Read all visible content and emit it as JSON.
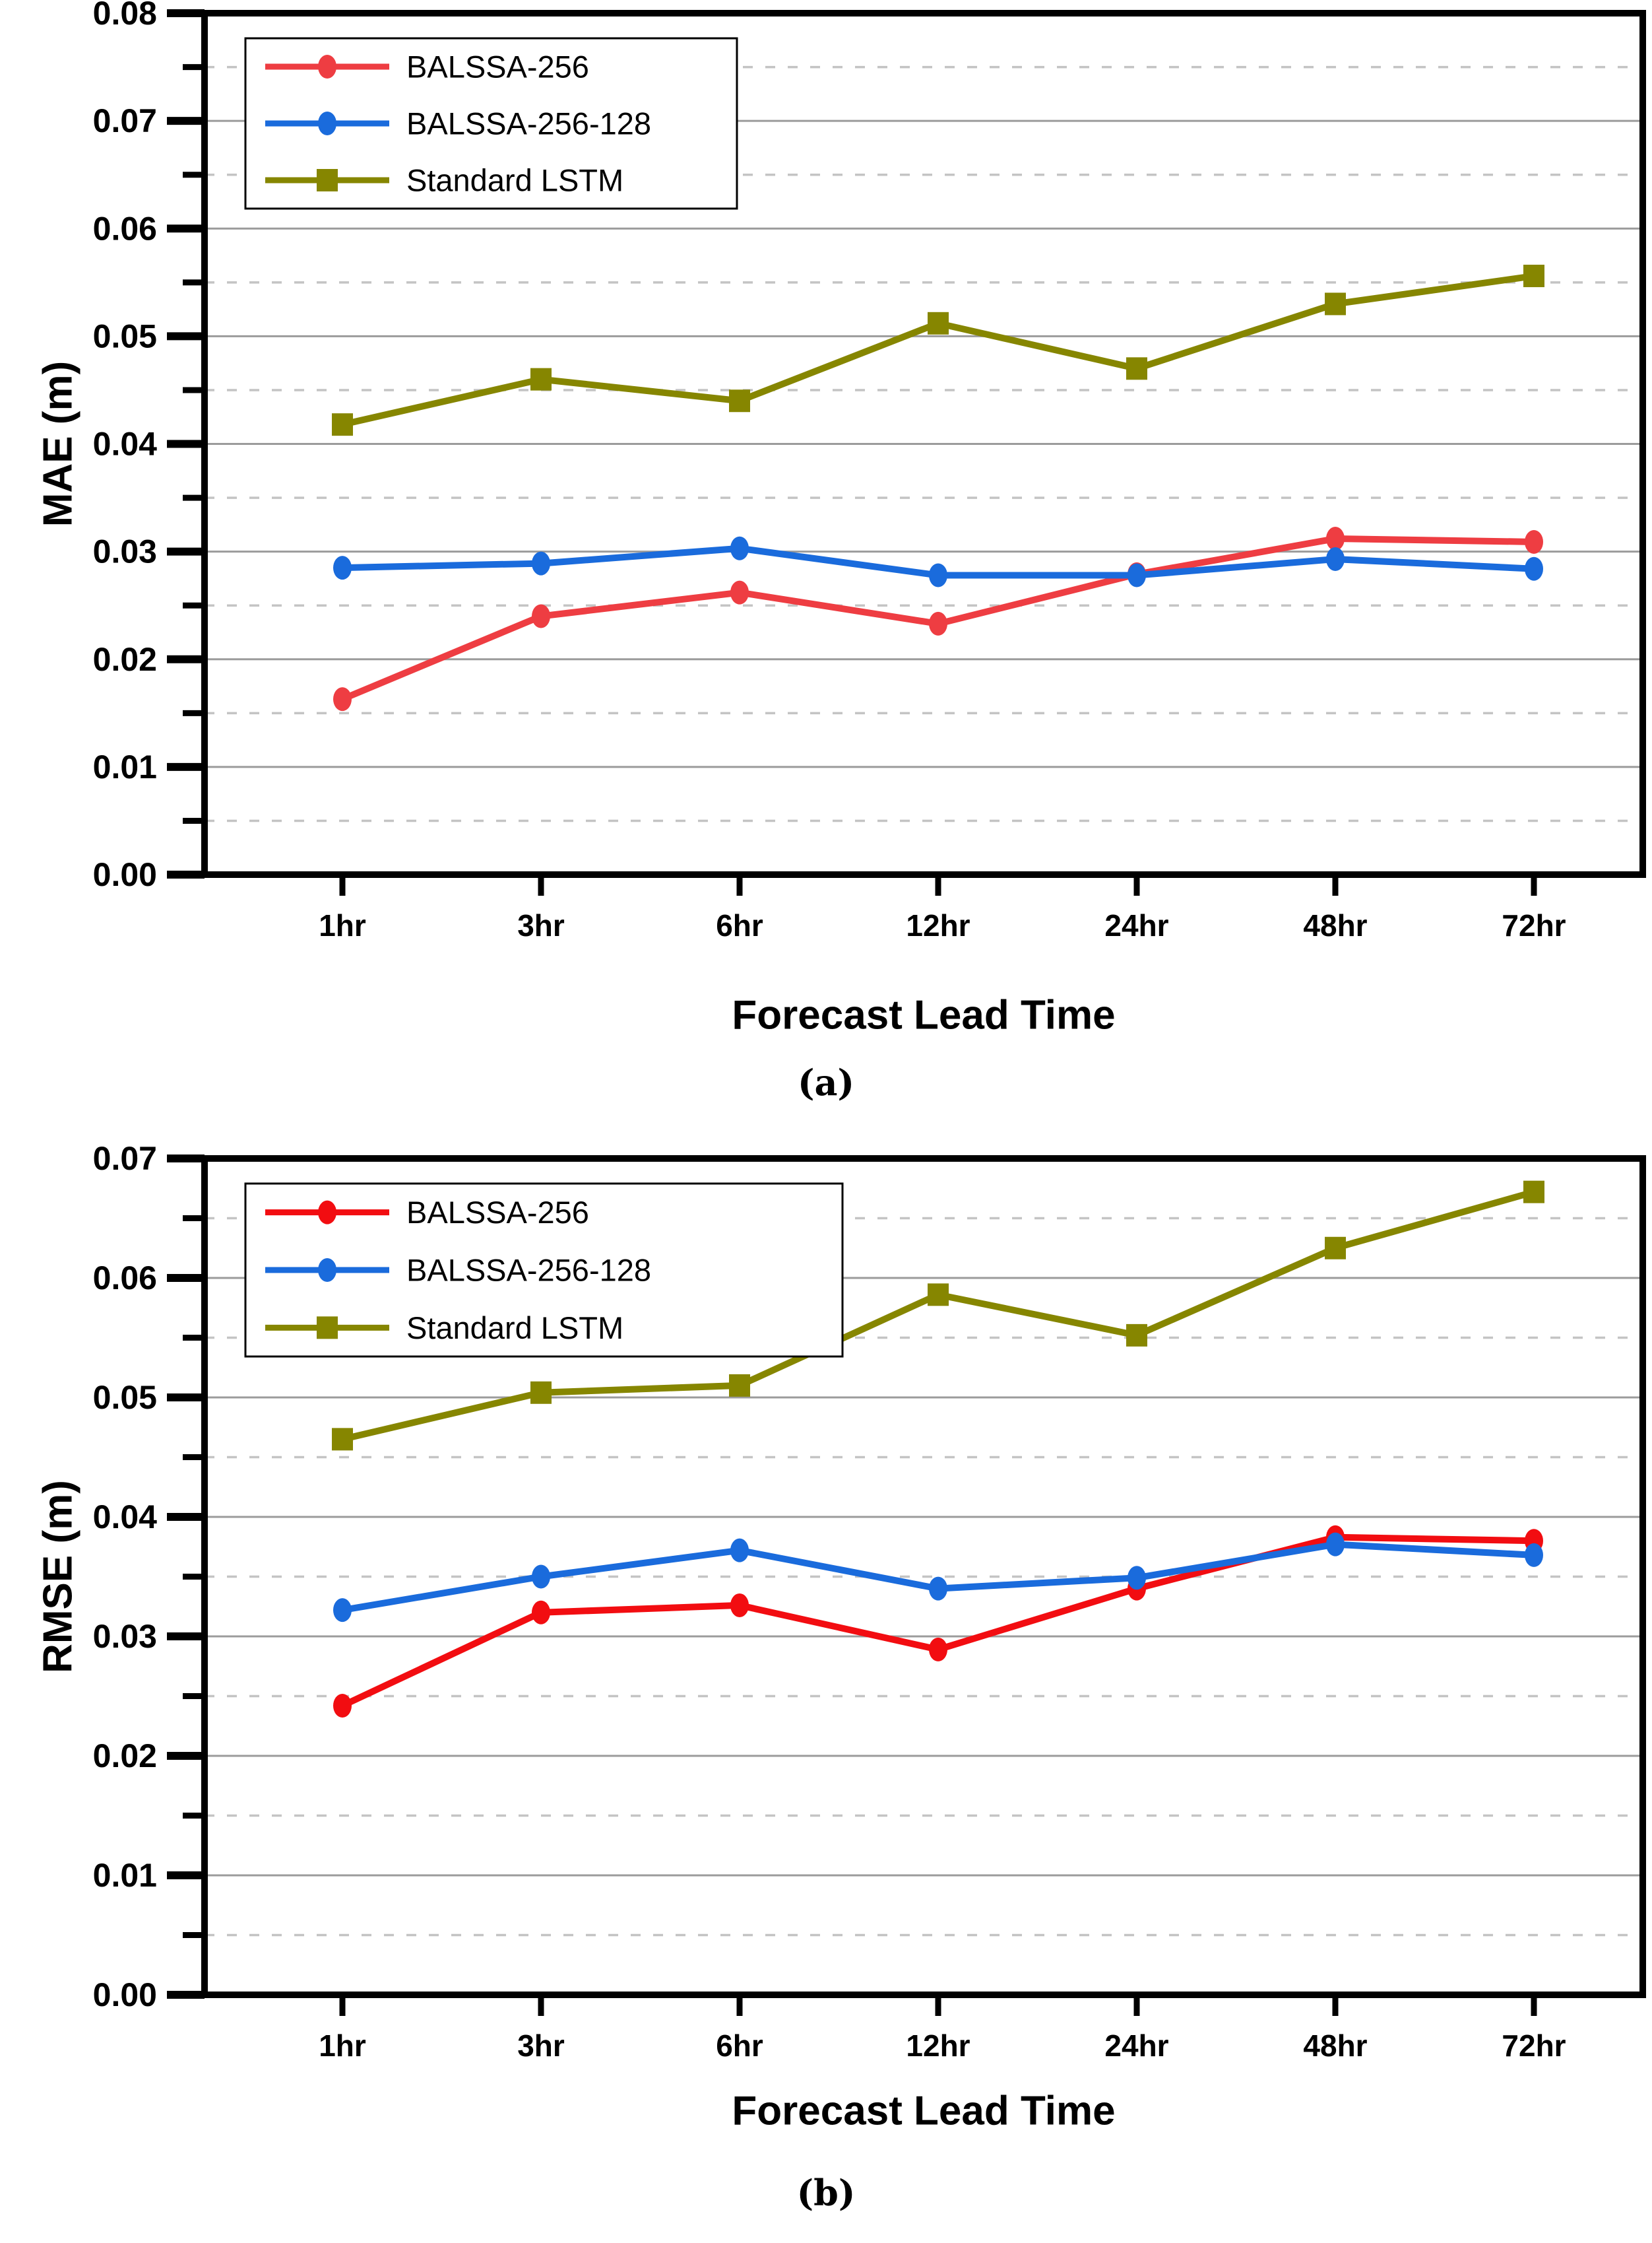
{
  "page": {
    "background": "#ffffff"
  },
  "panels": {
    "a": {
      "label": "(a)"
    },
    "b": {
      "label": "(b)"
    }
  },
  "colors": {
    "axis": "#000000",
    "text": "#000000",
    "grid_major": "#9b9b9b",
    "grid_minor": "#c4c4c4",
    "legend_border": "#000000",
    "background": "#ffffff",
    "balssa_256_mae": "#ee3d42",
    "balssa_256_rmse": "#f20d11",
    "balssa_256_128": "#1a6bdc",
    "standard_lstm": "#868600"
  },
  "chart_data": [
    {
      "type": "line",
      "panel": "a",
      "title": "",
      "xlabel": "Forecast Lead Time",
      "ylabel": "MAE (m)",
      "categories": [
        "1hr",
        "3hr",
        "6hr",
        "12hr",
        "24hr",
        "48hr",
        "72hr"
      ],
      "ylim": [
        0,
        0.08
      ],
      "ytick_step": 0.01,
      "yticks": [
        "0.00",
        "0.01",
        "0.02",
        "0.03",
        "0.04",
        "0.05",
        "0.06",
        "0.07",
        "0.08"
      ],
      "grid": {
        "major": "solid",
        "minor": "dashed",
        "minor_step": 0.005
      },
      "legend_position": "upper-left",
      "series": [
        {
          "name": "BALSSA-256",
          "color": "#ee3d42",
          "marker": "circle",
          "values": [
            0.0163,
            0.024,
            0.0262,
            0.0233,
            0.0279,
            0.0312,
            0.0309
          ]
        },
        {
          "name": "BALSSA-256-128",
          "color": "#1a6bdc",
          "marker": "circle",
          "values": [
            0.0285,
            0.0289,
            0.0303,
            0.0278,
            0.0278,
            0.0293,
            0.0284
          ]
        },
        {
          "name": "Standard LSTM",
          "color": "#868600",
          "marker": "square",
          "values": [
            0.0418,
            0.046,
            0.044,
            0.0512,
            0.047,
            0.053,
            0.0556
          ]
        }
      ]
    },
    {
      "type": "line",
      "panel": "b",
      "title": "",
      "xlabel": "Forecast Lead Time",
      "ylabel": "RMSE (m)",
      "categories": [
        "1hr",
        "3hr",
        "6hr",
        "12hr",
        "24hr",
        "48hr",
        "72hr"
      ],
      "ylim": [
        0,
        0.07
      ],
      "ytick_step": 0.01,
      "yticks": [
        "0.00",
        "0.01",
        "0.02",
        "0.03",
        "0.04",
        "0.05",
        "0.06",
        "0.07"
      ],
      "grid": {
        "major": "solid",
        "minor": "dashed",
        "minor_step": 0.005
      },
      "legend_position": "upper-left",
      "series": [
        {
          "name": "BALSSA-256",
          "color": "#f20d11",
          "marker": "circle",
          "values": [
            0.0242,
            0.032,
            0.0326,
            0.0289,
            0.034,
            0.0383,
            0.038
          ]
        },
        {
          "name": "BALSSA-256-128",
          "color": "#1a6bdc",
          "marker": "circle",
          "values": [
            0.0322,
            0.035,
            0.0372,
            0.034,
            0.0349,
            0.0377,
            0.0368
          ]
        },
        {
          "name": "Standard LSTM",
          "color": "#868600",
          "marker": "square",
          "values": [
            0.0465,
            0.0504,
            0.051,
            0.0586,
            0.0552,
            0.0625,
            0.0672
          ]
        }
      ]
    }
  ]
}
